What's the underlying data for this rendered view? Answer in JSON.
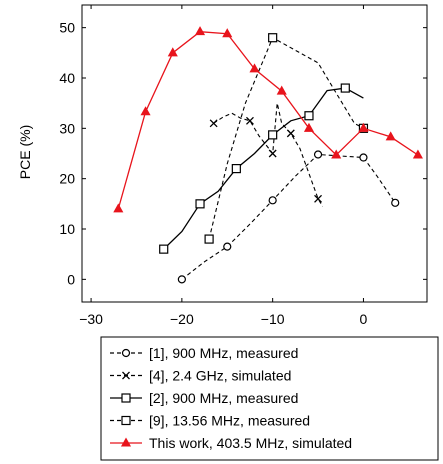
{
  "chart_data": {
    "type": "line",
    "ylabel": "PCE (%)",
    "xlabel": "",
    "title": "",
    "xlim": [
      -31,
      7
    ],
    "ylim": [
      -4.5,
      54.5
    ],
    "xticks": [
      -30,
      -20,
      -10,
      0
    ],
    "xtick_labels": [
      "−30",
      "−20",
      "−10",
      "0"
    ],
    "yticks": [
      0,
      10,
      20,
      30,
      40,
      50
    ],
    "ytick_labels": [
      "0",
      "10",
      "20",
      "30",
      "40",
      "50"
    ],
    "grid": false,
    "legend_position": "bottom-outside",
    "series": [
      {
        "name": "[1], 900 MHz, measured",
        "color": "#000000",
        "dash": "dashed",
        "marker": "circle",
        "x": [
          -20,
          -17.5,
          -15,
          -12.5,
          -10,
          -7.5,
          -5,
          -2.5,
          0,
          1.5,
          3.5
        ],
        "y": [
          0,
          3.5,
          6.5,
          11,
          15.7,
          20.5,
          24.8,
          24.5,
          24.2,
          20.5,
          15.2
        ],
        "marked": [
          true,
          false,
          true,
          false,
          true,
          false,
          true,
          false,
          true,
          false,
          true
        ]
      },
      {
        "name": "[4], 2.4 GHz, simulated",
        "color": "#000000",
        "dash": "dashed",
        "marker": "x",
        "x": [
          -16.5,
          -15.5,
          -14.5,
          -13.5,
          -12.5,
          -11.5,
          -10,
          -9.5,
          -9,
          -8,
          -7,
          -6,
          -5,
          -4.5
        ],
        "y": [
          31,
          32.2,
          33,
          32,
          31.5,
          28.5,
          25,
          35,
          31,
          29,
          26,
          21,
          16,
          14.5
        ],
        "marked": [
          true,
          false,
          false,
          false,
          true,
          false,
          true,
          false,
          false,
          true,
          false,
          false,
          true,
          false
        ]
      },
      {
        "name": "[2], 900 MHz, measured",
        "color": "#000000",
        "dash": "solid",
        "marker": "square",
        "x": [
          -22,
          -20,
          -18,
          -16,
          -14,
          -12,
          -10,
          -8,
          -6,
          -4,
          -2,
          0
        ],
        "y": [
          6,
          9.5,
          15,
          17.5,
          22,
          25,
          28.7,
          31.5,
          32.5,
          37.5,
          38,
          36
        ],
        "marked": [
          true,
          false,
          true,
          false,
          true,
          false,
          true,
          false,
          true,
          false,
          true,
          false
        ]
      },
      {
        "name": "[9], 13.56 MHz, measured",
        "color": "#000000",
        "dash": "dashed",
        "marker": "square",
        "x": [
          -17,
          -15,
          -13,
          -10,
          -5,
          -3,
          -1,
          0
        ],
        "y": [
          8,
          23,
          35,
          48,
          43,
          37,
          31,
          30
        ],
        "marked": [
          true,
          false,
          false,
          true,
          false,
          false,
          false,
          true
        ]
      },
      {
        "name": "This work, 403.5 MHz, simulated",
        "color": "#e8141c",
        "dash": "solid",
        "marker": "triangle",
        "x": [
          -27,
          -24,
          -21,
          -18,
          -15,
          -12,
          -9,
          -6,
          -3,
          0,
          3,
          6
        ],
        "y": [
          14,
          33.3,
          45,
          49.2,
          48.8,
          41.8,
          37.4,
          30,
          24.7,
          30,
          28.3,
          24.7
        ],
        "marked": [
          true,
          true,
          true,
          true,
          true,
          true,
          true,
          true,
          true,
          true,
          true,
          true
        ]
      }
    ]
  }
}
